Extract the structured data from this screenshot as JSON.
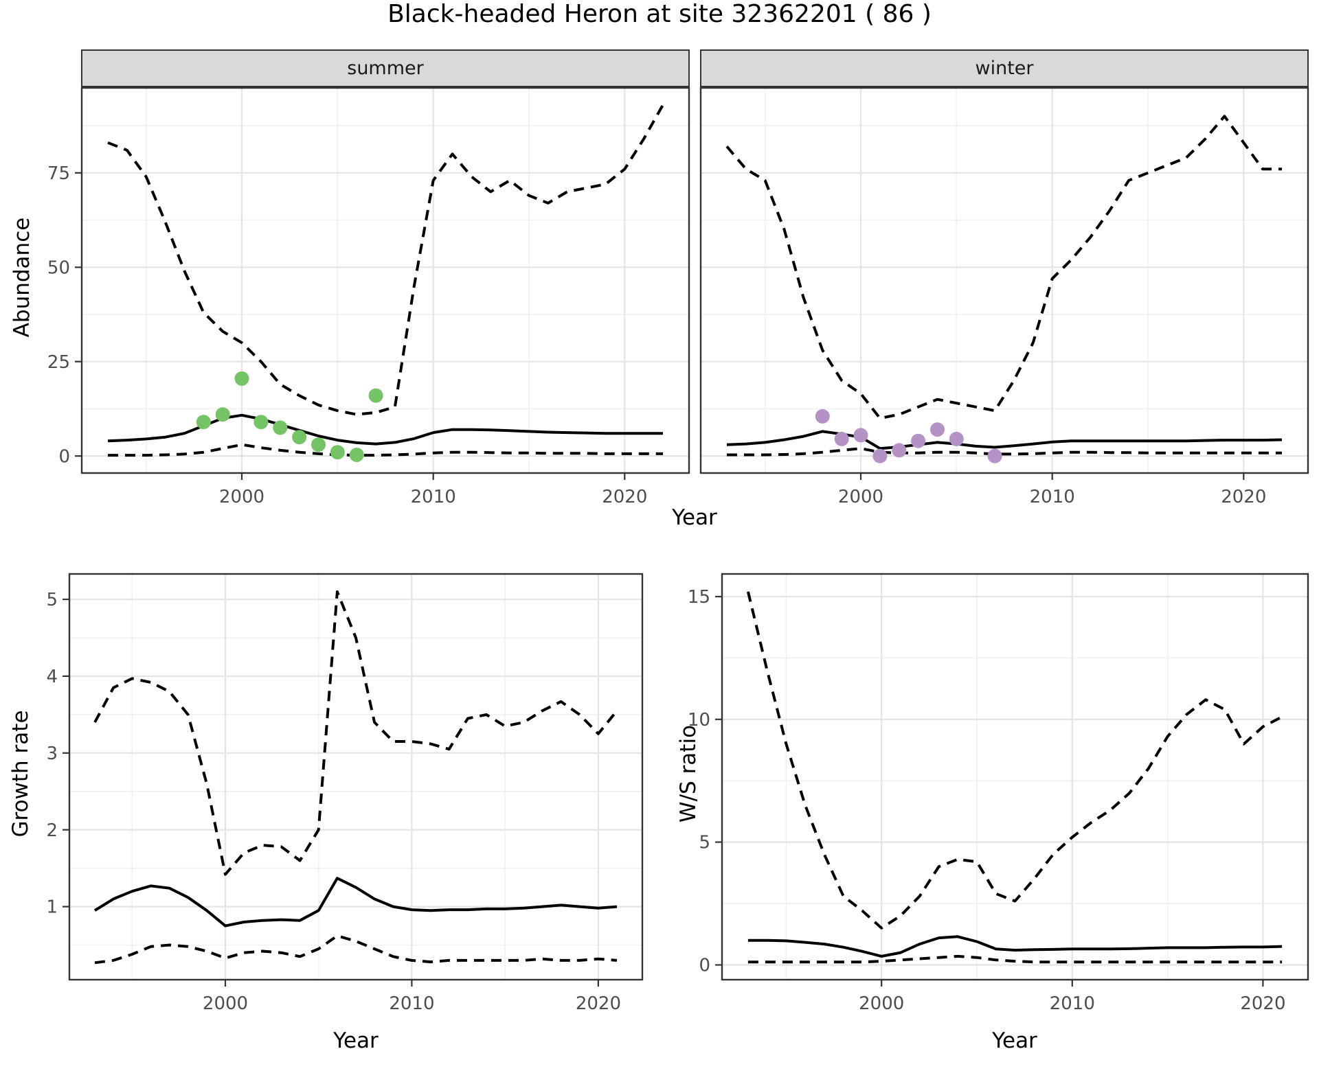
{
  "title": "Black-headed Heron at site 32362201 ( 86 )",
  "facets": [
    {
      "label": "summer"
    },
    {
      "label": "winter"
    }
  ],
  "axes": {
    "abundance_label": "Abundance",
    "year_label": "Year",
    "growth_label": "Growth rate",
    "ws_label": "W/S ratio"
  },
  "colors": {
    "summer_points": "#74c365",
    "winter_points": "#b592c6",
    "line": "#000000",
    "grid_major": "#e4e4e4",
    "grid_minor": "#f0f0f0",
    "panel_border": "#333333",
    "strip_fill": "#d9d9d9",
    "axis_text": "#4d4d4d"
  },
  "chart_data": [
    {
      "id": "abundance-summer",
      "type": "line",
      "facet": "summer",
      "xlabel": "Year",
      "ylabel": "Abundance",
      "xlim": [
        1991.6,
        2023.4
      ],
      "ylim": [
        -4.7,
        97.7
      ],
      "x_ticks": [
        {
          "v": 2000,
          "label": "2000"
        },
        {
          "v": 2010,
          "label": "2010"
        },
        {
          "v": 2020,
          "label": "2020"
        }
      ],
      "x_minor": [
        1995,
        2005,
        2015
      ],
      "y_ticks": [
        {
          "v": 0,
          "label": "0"
        },
        {
          "v": 25,
          "label": "25"
        },
        {
          "v": 50,
          "label": "50"
        },
        {
          "v": 75,
          "label": "75"
        }
      ],
      "y_minor": [
        12.5,
        37.5,
        62.5,
        87.5
      ],
      "x": [
        1993,
        1994,
        1995,
        1996,
        1997,
        1998,
        1999,
        2000,
        2001,
        2002,
        2003,
        2004,
        2005,
        2006,
        2007,
        2008,
        2009,
        2010,
        2011,
        2012,
        2013,
        2014,
        2015,
        2016,
        2017,
        2018,
        2019,
        2020,
        2021,
        2022
      ],
      "series": [
        {
          "name": "mean",
          "style": "solid",
          "values": [
            4,
            4.2,
            4.5,
            5,
            6,
            8,
            10,
            10.8,
            9.8,
            8.3,
            6.8,
            5.3,
            4.2,
            3.5,
            3.2,
            3.6,
            4.6,
            6.2,
            7,
            7,
            6.9,
            6.7,
            6.5,
            6.3,
            6.2,
            6.1,
            6,
            6,
            6,
            6
          ]
        },
        {
          "name": "upper_95ci",
          "style": "dashed",
          "values": [
            83,
            81,
            74,
            62,
            49,
            38,
            33,
            30,
            25,
            19,
            16,
            13.5,
            12,
            11,
            11.5,
            13,
            45,
            73,
            80,
            74,
            70,
            73,
            69,
            67,
            70,
            71,
            72,
            76,
            84,
            93
          ]
        },
        {
          "name": "lower_95ci",
          "style": "dashed",
          "values": [
            0.2,
            0.2,
            0.2,
            0.3,
            0.5,
            1,
            2,
            3,
            2.2,
            1.5,
            1,
            0.6,
            0.3,
            0.2,
            0.2,
            0.3,
            0.5,
            0.8,
            1,
            1,
            0.9,
            0.8,
            0.8,
            0.7,
            0.7,
            0.7,
            0.6,
            0.6,
            0.6,
            0.6
          ]
        }
      ],
      "points": {
        "name": "summer observations",
        "color": "#74c365",
        "x": [
          1998,
          1999,
          2000,
          2001,
          2002,
          2003,
          2004,
          2005,
          2006,
          2007
        ],
        "y": [
          9,
          11,
          20.5,
          9,
          7.5,
          5,
          3,
          1,
          0.3,
          16
        ]
      }
    },
    {
      "id": "abundance-winter",
      "type": "line",
      "facet": "winter",
      "xlabel": "Year",
      "ylabel": "Abundance",
      "xlim": [
        1991.6,
        2023.4
      ],
      "ylim": [
        -4.7,
        97.7
      ],
      "x_ticks": [
        {
          "v": 2000,
          "label": "2000"
        },
        {
          "v": 2010,
          "label": "2010"
        },
        {
          "v": 2020,
          "label": "2020"
        }
      ],
      "x_minor": [
        1995,
        2005,
        2015
      ],
      "y_ticks": [
        {
          "v": 0,
          "label": "0"
        },
        {
          "v": 25,
          "label": "25"
        },
        {
          "v": 50,
          "label": "50"
        },
        {
          "v": 75,
          "label": "75"
        }
      ],
      "y_minor": [
        12.5,
        37.5,
        62.5,
        87.5
      ],
      "x": [
        1993,
        1994,
        1995,
        1996,
        1997,
        1998,
        1999,
        2000,
        2001,
        2002,
        2003,
        2004,
        2005,
        2006,
        2007,
        2008,
        2009,
        2010,
        2011,
        2012,
        2013,
        2014,
        2015,
        2016,
        2017,
        2018,
        2019,
        2020,
        2021,
        2022
      ],
      "series": [
        {
          "name": "mean",
          "style": "solid",
          "values": [
            3,
            3.2,
            3.6,
            4.3,
            5.2,
            6.5,
            5.8,
            5,
            2,
            2.4,
            3,
            3.6,
            3.2,
            2.6,
            2.3,
            2.7,
            3.2,
            3.7,
            4,
            4,
            4,
            4,
            4,
            4,
            4,
            4.1,
            4.2,
            4.2,
            4.2,
            4.3
          ]
        },
        {
          "name": "upper_95ci",
          "style": "dashed",
          "values": [
            82,
            76,
            73,
            60,
            42,
            28,
            20,
            16.5,
            10,
            11,
            13,
            15,
            14,
            13,
            12,
            20,
            30,
            47,
            52,
            58,
            65,
            73,
            75,
            77,
            79,
            84,
            90,
            83,
            76,
            76
          ]
        },
        {
          "name": "lower_95ci",
          "style": "dashed",
          "values": [
            0.3,
            0.3,
            0.3,
            0.4,
            0.6,
            1,
            1.5,
            2,
            1,
            0.8,
            0.8,
            1,
            1,
            0.8,
            0.5,
            0.5,
            0.6,
            0.8,
            1,
            1,
            0.9,
            0.9,
            0.8,
            0.8,
            0.8,
            0.8,
            0.8,
            0.8,
            0.8,
            0.8
          ]
        }
      ],
      "points": {
        "name": "winter observations",
        "color": "#b592c6",
        "x": [
          1998,
          1999,
          2000,
          2001,
          2002,
          2003,
          2004,
          2005,
          2007
        ],
        "y": [
          10.5,
          4.5,
          5.5,
          0,
          1.5,
          4,
          7,
          4.5,
          0
        ]
      }
    },
    {
      "id": "growth",
      "type": "line",
      "xlabel": "Year",
      "ylabel": "Growth rate",
      "xlim": [
        1991.6,
        2022.4
      ],
      "ylim": [
        0.04,
        5.34
      ],
      "x_ticks": [
        {
          "v": 2000,
          "label": "2000"
        },
        {
          "v": 2010,
          "label": "2010"
        },
        {
          "v": 2020,
          "label": "2020"
        }
      ],
      "x_minor": [
        1995,
        2005,
        2015
      ],
      "y_ticks": [
        {
          "v": 1,
          "label": "1"
        },
        {
          "v": 2,
          "label": "2"
        },
        {
          "v": 3,
          "label": "3"
        },
        {
          "v": 4,
          "label": "4"
        },
        {
          "v": 5,
          "label": "5"
        }
      ],
      "y_minor": [
        0.5,
        1.5,
        2.5,
        3.5,
        4.5
      ],
      "x": [
        1993,
        1994,
        1995,
        1996,
        1997,
        1998,
        1999,
        2000,
        2001,
        2002,
        2003,
        2004,
        2005,
        2006,
        2007,
        2008,
        2009,
        2010,
        2011,
        2012,
        2013,
        2014,
        2015,
        2016,
        2017,
        2018,
        2019,
        2020,
        2021
      ],
      "series": [
        {
          "name": "mean",
          "style": "solid",
          "values": [
            0.95,
            1.1,
            1.2,
            1.27,
            1.24,
            1.12,
            0.95,
            0.75,
            0.8,
            0.82,
            0.83,
            0.82,
            0.95,
            1.37,
            1.25,
            1.1,
            1.0,
            0.96,
            0.95,
            0.96,
            0.96,
            0.97,
            0.97,
            0.98,
            1.0,
            1.02,
            1.0,
            0.98,
            1.0
          ]
        },
        {
          "name": "upper_95ci",
          "style": "dashed",
          "values": [
            3.4,
            3.85,
            3.97,
            3.92,
            3.8,
            3.5,
            2.6,
            1.42,
            1.7,
            1.8,
            1.78,
            1.6,
            2.0,
            5.1,
            4.5,
            3.4,
            3.15,
            3.15,
            3.12,
            3.05,
            3.45,
            3.5,
            3.35,
            3.4,
            3.55,
            3.67,
            3.5,
            3.25,
            3.55
          ]
        },
        {
          "name": "lower_95ci",
          "style": "dashed",
          "values": [
            0.27,
            0.3,
            0.38,
            0.48,
            0.5,
            0.48,
            0.42,
            0.33,
            0.4,
            0.42,
            0.4,
            0.35,
            0.45,
            0.62,
            0.55,
            0.45,
            0.35,
            0.3,
            0.28,
            0.3,
            0.3,
            0.3,
            0.3,
            0.3,
            0.32,
            0.3,
            0.3,
            0.32,
            0.3
          ]
        }
      ]
    },
    {
      "id": "ws",
      "type": "line",
      "xlabel": "Year",
      "ylabel": "W/S ratio",
      "xlim": [
        1991.6,
        2022.4
      ],
      "ylim": [
        -0.63,
        15.95
      ],
      "x_ticks": [
        {
          "v": 2000,
          "label": "2000"
        },
        {
          "v": 2010,
          "label": "2010"
        },
        {
          "v": 2020,
          "label": "2020"
        }
      ],
      "x_minor": [
        1995,
        2005,
        2015
      ],
      "y_ticks": [
        {
          "v": 0,
          "label": "0"
        },
        {
          "v": 5,
          "label": "5"
        },
        {
          "v": 10,
          "label": "10"
        },
        {
          "v": 15,
          "label": "15"
        }
      ],
      "y_minor": [
        2.5,
        7.5,
        12.5
      ],
      "x": [
        1993,
        1994,
        1995,
        1996,
        1997,
        1998,
        1999,
        2000,
        2001,
        2002,
        2003,
        2004,
        2005,
        2006,
        2007,
        2008,
        2009,
        2010,
        2011,
        2012,
        2013,
        2014,
        2015,
        2016,
        2017,
        2018,
        2019,
        2020,
        2021
      ],
      "series": [
        {
          "name": "mean",
          "style": "solid",
          "values": [
            1.0,
            1.0,
            0.98,
            0.92,
            0.85,
            0.72,
            0.55,
            0.35,
            0.5,
            0.85,
            1.1,
            1.15,
            0.95,
            0.65,
            0.6,
            0.62,
            0.63,
            0.65,
            0.65,
            0.65,
            0.66,
            0.68,
            0.7,
            0.7,
            0.7,
            0.72,
            0.73,
            0.73,
            0.75
          ]
        },
        {
          "name": "upper_95ci",
          "style": "dashed",
          "values": [
            15.2,
            12.0,
            9.0,
            6.5,
            4.5,
            2.8,
            2.2,
            1.5,
            2.0,
            2.8,
            4.0,
            4.3,
            4.2,
            2.9,
            2.6,
            3.5,
            4.5,
            5.2,
            5.8,
            6.3,
            7.0,
            8.0,
            9.3,
            10.2,
            10.8,
            10.4,
            9.0,
            9.7,
            10.1
          ]
        },
        {
          "name": "lower_95ci",
          "style": "dashed",
          "values": [
            0.12,
            0.12,
            0.12,
            0.12,
            0.12,
            0.12,
            0.12,
            0.15,
            0.2,
            0.25,
            0.3,
            0.35,
            0.3,
            0.2,
            0.15,
            0.12,
            0.12,
            0.12,
            0.12,
            0.12,
            0.12,
            0.12,
            0.12,
            0.12,
            0.12,
            0.12,
            0.12,
            0.12,
            0.12
          ]
        }
      ]
    }
  ]
}
